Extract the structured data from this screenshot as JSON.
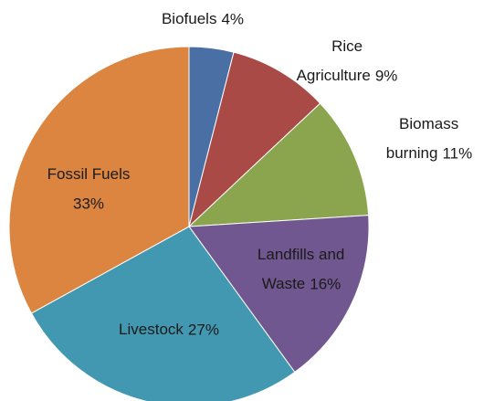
{
  "chart_data": {
    "type": "pie",
    "categories": [
      "Biofuels",
      "Rice Agriculture",
      "Biomass burning",
      "Landfills and Waste",
      "Livestock",
      "Fossil Fuels"
    ],
    "values": [
      4,
      9,
      11,
      16,
      27,
      33
    ],
    "value_labels": [
      "4%",
      "9%",
      "11%",
      "16%",
      "27%",
      "33%"
    ],
    "colors": [
      "#4a6fa5",
      "#a94a47",
      "#8ba54f",
      "#71578f",
      "#4298b0",
      "#db8540"
    ]
  }
}
